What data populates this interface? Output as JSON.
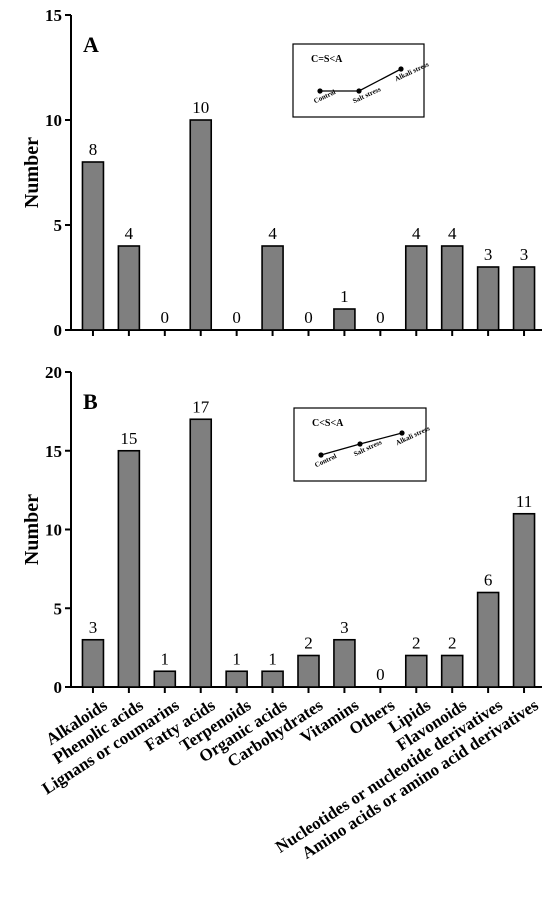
{
  "chart_data": [
    {
      "type": "bar",
      "panel_label": "A",
      "ylabel": "Number",
      "ylim": [
        0,
        15
      ],
      "yticks": [
        0,
        5,
        10,
        15
      ],
      "categories": [
        "Alkaloids",
        "Phenolic acids",
        "Lignans or coumarins",
        "Fatty acids",
        "Terpenoids",
        "Organic acids",
        "Carbohydrates",
        "Vitamins",
        "Others",
        "Lipids",
        "Flavonoids",
        "Nucleotides or nucleotide derivatives",
        "Amino acids or amino acid derivatives"
      ],
      "values": [
        8,
        4,
        0,
        10,
        0,
        4,
        0,
        1,
        0,
        4,
        4,
        3,
        3
      ],
      "bar_color": "#7f7f7f",
      "inset": {
        "relation": "C=S<A",
        "points": [
          "Control",
          "Salt stress",
          "Alkali stress"
        ],
        "levels": [
          1,
          1,
          2
        ]
      }
    },
    {
      "type": "bar",
      "panel_label": "B",
      "ylabel": "Number",
      "ylim": [
        0,
        20
      ],
      "yticks": [
        0,
        5,
        10,
        15,
        20
      ],
      "categories": [
        "Alkaloids",
        "Phenolic acids",
        "Lignans or coumarins",
        "Fatty acids",
        "Terpenoids",
        "Organic acids",
        "Carbohydrates",
        "Vitamins",
        "Others",
        "Lipids",
        "Flavonoids",
        "Nucleotides or nucleotide derivatives",
        "Amino acids or amino acid derivatives"
      ],
      "values": [
        3,
        15,
        1,
        17,
        1,
        1,
        2,
        3,
        0,
        2,
        2,
        6,
        11
      ],
      "bar_color": "#7f7f7f",
      "inset": {
        "relation": "C<S<A",
        "points": [
          "Control",
          "Salt stress",
          "Alkali stress"
        ],
        "levels": [
          1,
          2,
          3
        ]
      }
    }
  ]
}
